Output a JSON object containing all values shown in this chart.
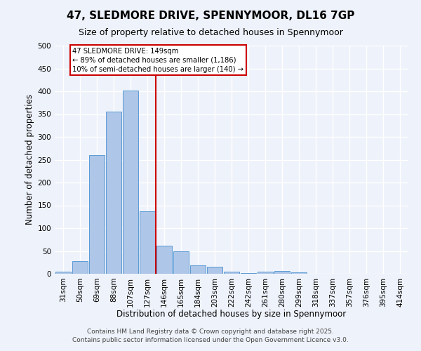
{
  "title": "47, SLEDMORE DRIVE, SPENNYMOOR, DL16 7GP",
  "subtitle": "Size of property relative to detached houses in Spennymoor",
  "xlabel": "Distribution of detached houses by size in Spennymoor",
  "ylabel": "Number of detached properties",
  "bar_labels": [
    "31sqm",
    "50sqm",
    "69sqm",
    "88sqm",
    "107sqm",
    "127sqm",
    "146sqm",
    "165sqm",
    "184sqm",
    "203sqm",
    "222sqm",
    "242sqm",
    "261sqm",
    "280sqm",
    "299sqm",
    "318sqm",
    "337sqm",
    "357sqm",
    "376sqm",
    "395sqm",
    "414sqm"
  ],
  "bar_values": [
    5,
    27,
    260,
    355,
    402,
    137,
    62,
    49,
    18,
    15,
    5,
    2,
    5,
    6,
    3,
    0,
    0,
    0,
    0,
    0,
    0
  ],
  "bar_color": "#aec6e8",
  "bar_edge_color": "#5b9bd5",
  "annotation_title": "47 SLEDMORE DRIVE: 149sqm",
  "annotation_line1": "← 89% of detached houses are smaller (1,186)",
  "annotation_line2": "10% of semi-detached houses are larger (140) →",
  "annotation_box_color": "#ffffff",
  "annotation_box_edge_color": "#cc0000",
  "vline_color": "#cc0000",
  "ylim": [
    0,
    500
  ],
  "yticks": [
    0,
    50,
    100,
    150,
    200,
    250,
    300,
    350,
    400,
    450,
    500
  ],
  "footer1": "Contains HM Land Registry data © Crown copyright and database right 2025.",
  "footer2": "Contains public sector information licensed under the Open Government Licence v3.0.",
  "bg_color": "#eef2fa",
  "grid_color": "#ffffff",
  "title_fontsize": 11,
  "subtitle_fontsize": 9,
  "axis_label_fontsize": 8.5,
  "tick_fontsize": 7.5,
  "footer_fontsize": 6.5
}
